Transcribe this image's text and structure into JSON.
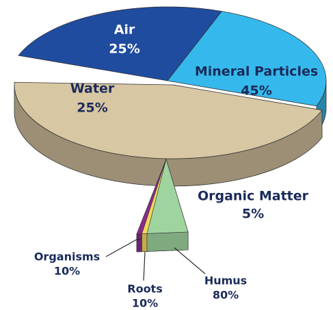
{
  "chart_data": {
    "type": "pie",
    "categories": [
      "Air",
      "Water",
      "Mineral Particles",
      "Organic Matter"
    ],
    "values": [
      25,
      25,
      45,
      5
    ],
    "value_labels": [
      "25%",
      "25%",
      "45%",
      "5%"
    ],
    "colors": [
      "#1f4c9e",
      "#35b9ec",
      "#d8c7a3",
      "#93cf93"
    ],
    "breakdown": {
      "categories": [
        "Organisms",
        "Roots",
        "Humus"
      ],
      "values": [
        10,
        10,
        80
      ],
      "value_labels": [
        "10%",
        "10%",
        "80%"
      ],
      "colors": [
        "#8a2a8c",
        "#f3d85c",
        "#9fd49f"
      ]
    }
  }
}
